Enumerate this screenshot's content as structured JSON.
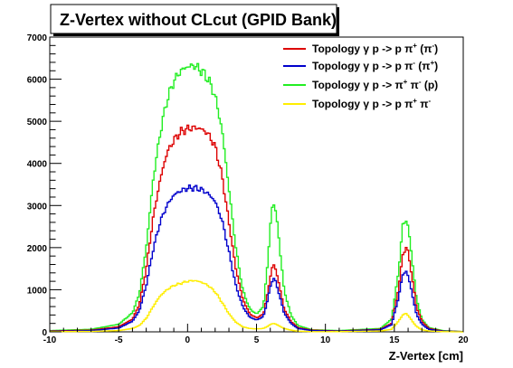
{
  "chart_data": {
    "type": "line",
    "title": "Z-Vertex without CLcut (GPID Bank)",
    "xlabel": "Z-Vertex [cm]",
    "ylabel": "",
    "xlim": [
      -10,
      20
    ],
    "ylim": [
      0,
      7000
    ],
    "x_ticks": [
      "-10",
      "-5",
      "0",
      "5",
      "10",
      "15",
      "20"
    ],
    "y_ticks": [
      "0",
      "1000",
      "2000",
      "3000",
      "4000",
      "5000",
      "6000",
      "7000"
    ],
    "grid": false,
    "legend_position": "top-right",
    "series": [
      {
        "name": "Topology γ p -> p π⁺ (π⁻)",
        "label_parts": [
          "Topology γ p -> p π",
          "+",
          " (π",
          "-",
          ")"
        ],
        "color": "#dd0000",
        "points": [
          [
            -10,
            20
          ],
          [
            -7,
            40
          ],
          [
            -5,
            120
          ],
          [
            -4,
            300
          ],
          [
            -3.5,
            650
          ],
          [
            -3,
            1500
          ],
          [
            -2.5,
            2700
          ],
          [
            -2,
            3600
          ],
          [
            -1.5,
            4250
          ],
          [
            -1,
            4550
          ],
          [
            -0.5,
            4750
          ],
          [
            0,
            4820
          ],
          [
            0.5,
            4850
          ],
          [
            1,
            4820
          ],
          [
            1.5,
            4700
          ],
          [
            2,
            4400
          ],
          [
            2.5,
            3700
          ],
          [
            3,
            2600
          ],
          [
            3.5,
            1500
          ],
          [
            4,
            780
          ],
          [
            4.5,
            430
          ],
          [
            5,
            330
          ],
          [
            5.5,
            420
          ],
          [
            5.8,
            900
          ],
          [
            6.1,
            1500
          ],
          [
            6.3,
            1600
          ],
          [
            6.6,
            1200
          ],
          [
            7,
            550
          ],
          [
            7.5,
            250
          ],
          [
            8,
            100
          ],
          [
            9,
            40
          ],
          [
            11,
            20
          ],
          [
            14,
            60
          ],
          [
            14.8,
            200
          ],
          [
            15.3,
            1000
          ],
          [
            15.6,
            1800
          ],
          [
            15.9,
            2050
          ],
          [
            16.2,
            1500
          ],
          [
            16.6,
            600
          ],
          [
            17,
            250
          ],
          [
            17.5,
            80
          ],
          [
            18.5,
            20
          ],
          [
            20,
            5
          ]
        ]
      },
      {
        "name": "Topology γ p -> p π⁻ (π⁺)",
        "label_parts": [
          "Topology γ p -> p π",
          "-",
          " (π",
          "+",
          ")"
        ],
        "color": "#0000cc",
        "points": [
          [
            -10,
            10
          ],
          [
            -7,
            30
          ],
          [
            -5,
            90
          ],
          [
            -4,
            250
          ],
          [
            -3.5,
            500
          ],
          [
            -3,
            1100
          ],
          [
            -2.5,
            1950
          ],
          [
            -2,
            2600
          ],
          [
            -1.5,
            3000
          ],
          [
            -1,
            3250
          ],
          [
            -0.5,
            3350
          ],
          [
            0,
            3410
          ],
          [
            0.5,
            3420
          ],
          [
            1,
            3380
          ],
          [
            1.5,
            3280
          ],
          [
            2,
            3100
          ],
          [
            2.5,
            2650
          ],
          [
            3,
            1900
          ],
          [
            3.5,
            1100
          ],
          [
            4,
            600
          ],
          [
            4.5,
            350
          ],
          [
            5,
            280
          ],
          [
            5.5,
            360
          ],
          [
            5.8,
            750
          ],
          [
            6.1,
            1200
          ],
          [
            6.3,
            1280
          ],
          [
            6.6,
            950
          ],
          [
            7,
            450
          ],
          [
            7.5,
            200
          ],
          [
            8,
            80
          ],
          [
            9,
            30
          ],
          [
            11,
            15
          ],
          [
            14,
            50
          ],
          [
            14.8,
            170
          ],
          [
            15.3,
            800
          ],
          [
            15.6,
            1350
          ],
          [
            15.9,
            1450
          ],
          [
            16.2,
            1050
          ],
          [
            16.6,
            420
          ],
          [
            17,
            180
          ],
          [
            17.5,
            60
          ],
          [
            18.5,
            15
          ],
          [
            20,
            5
          ]
        ]
      },
      {
        "name": "Topology γ p -> π⁺ π⁻ (p)",
        "label_parts": [
          "Topology γ p -> π",
          "+",
          " π",
          "-",
          " (p)"
        ],
        "color": "#22ee22",
        "points": [
          [
            -10,
            30
          ],
          [
            -7,
            60
          ],
          [
            -5,
            180
          ],
          [
            -4,
            450
          ],
          [
            -3.5,
            900
          ],
          [
            -3,
            2000
          ],
          [
            -2.5,
            3600
          ],
          [
            -2,
            4700
          ],
          [
            -1.5,
            5500
          ],
          [
            -1,
            5950
          ],
          [
            -0.5,
            6200
          ],
          [
            0,
            6300
          ],
          [
            0.5,
            6320
          ],
          [
            1,
            6200
          ],
          [
            1.5,
            6000
          ],
          [
            2,
            5600
          ],
          [
            2.5,
            4800
          ],
          [
            3,
            3400
          ],
          [
            3.5,
            2000
          ],
          [
            4,
            1000
          ],
          [
            4.5,
            550
          ],
          [
            5,
            420
          ],
          [
            5.5,
            600
          ],
          [
            5.8,
            1600
          ],
          [
            6.1,
            2900
          ],
          [
            6.3,
            3100
          ],
          [
            6.6,
            2300
          ],
          [
            7,
            1000
          ],
          [
            7.5,
            400
          ],
          [
            8,
            150
          ],
          [
            9,
            50
          ],
          [
            11,
            30
          ],
          [
            14,
            80
          ],
          [
            14.8,
            300
          ],
          [
            15.3,
            1400
          ],
          [
            15.6,
            2500
          ],
          [
            15.9,
            2700
          ],
          [
            16.2,
            2000
          ],
          [
            16.6,
            800
          ],
          [
            17,
            300
          ],
          [
            17.5,
            100
          ],
          [
            18.5,
            30
          ],
          [
            20,
            5
          ]
        ]
      },
      {
        "name": "Topology γ p -> p π⁺ π⁻",
        "label_parts": [
          "Topology γ p -> p π",
          "+",
          " π",
          "-",
          ""
        ],
        "color": "#ffee00",
        "points": [
          [
            -10,
            5
          ],
          [
            -7,
            10
          ],
          [
            -5,
            30
          ],
          [
            -4,
            80
          ],
          [
            -3.5,
            150
          ],
          [
            -3,
            320
          ],
          [
            -2.5,
            600
          ],
          [
            -2,
            850
          ],
          [
            -1.5,
            1000
          ],
          [
            -1,
            1100
          ],
          [
            -0.5,
            1150
          ],
          [
            0,
            1200
          ],
          [
            0.5,
            1220
          ],
          [
            1,
            1180
          ],
          [
            1.5,
            1100
          ],
          [
            2,
            950
          ],
          [
            2.5,
            700
          ],
          [
            3,
            430
          ],
          [
            3.5,
            230
          ],
          [
            4,
            120
          ],
          [
            4.5,
            80
          ],
          [
            5,
            70
          ],
          [
            5.5,
            80
          ],
          [
            5.8,
            130
          ],
          [
            6.1,
            190
          ],
          [
            6.3,
            200
          ],
          [
            6.6,
            150
          ],
          [
            7,
            80
          ],
          [
            7.5,
            40
          ],
          [
            8,
            15
          ],
          [
            9,
            5
          ],
          [
            11,
            5
          ],
          [
            14,
            20
          ],
          [
            14.8,
            60
          ],
          [
            15.3,
            250
          ],
          [
            15.6,
            400
          ],
          [
            15.9,
            440
          ],
          [
            16.2,
            300
          ],
          [
            16.6,
            130
          ],
          [
            17,
            50
          ],
          [
            17.5,
            20
          ],
          [
            18.5,
            5
          ],
          [
            20,
            0
          ]
        ]
      }
    ]
  }
}
